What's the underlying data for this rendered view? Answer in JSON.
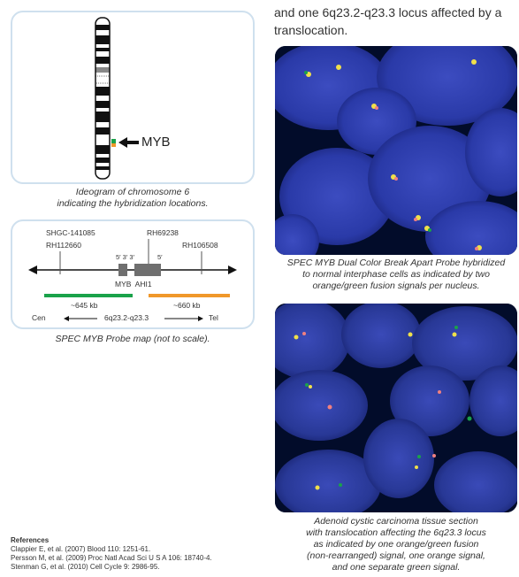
{
  "intro": {
    "lines": [
      "and one 6q23.2-q23.3 locus affected by a",
      "translocation."
    ]
  },
  "ideogram": {
    "gene_label": "MYB",
    "caption_lines": [
      "Ideogram of chromosome 6",
      "indicating the hybridization locations."
    ]
  },
  "probe_map": {
    "marker_shgc": "SHGC-141085",
    "marker_rh112660": "RH112660",
    "marker_rh69238": "RH69238",
    "marker_rh106508": "RH106508",
    "strand_left": "5′ 3′ 3′",
    "strand_right": "5′",
    "genes": "MYB  AHI1",
    "green_size": "~645 kb",
    "orange_size": "~660 kb",
    "cen": "Cen",
    "locus": "6q23.2-q23.3",
    "tel": "Tel",
    "caption": "SPEC MYB Probe map (not to scale)."
  },
  "micrograph_1": {
    "caption_lines": [
      "SPEC MYB Dual Color Break Apart Probe hybridized",
      "to normal interphase cells as indicated by two",
      "orange/green fusion signals per nucleus."
    ]
  },
  "micrograph_2": {
    "caption_lines": [
      "Adenoid cystic carcinoma tissue section",
      "with translocation affecting the 6q23.3 locus",
      "as indicated by one orange/green fusion",
      "(non-rearranged) signal, one orange signal,",
      "and one separate green signal."
    ]
  },
  "references": {
    "title": "References",
    "items": [
      "Clappier E, et al. (2007) Blood 110: 1251-61.",
      "Persson M, et al. (2009) Proc Natl Acad Sci U S A 106: 18740-4.",
      "Stenman G, et al. (2010) Cell Cycle 9: 2986-95."
    ]
  },
  "colors": {
    "green_probe": "#1aa24a",
    "orange_probe": "#f0982a",
    "box_border": "#cfe0ee"
  }
}
